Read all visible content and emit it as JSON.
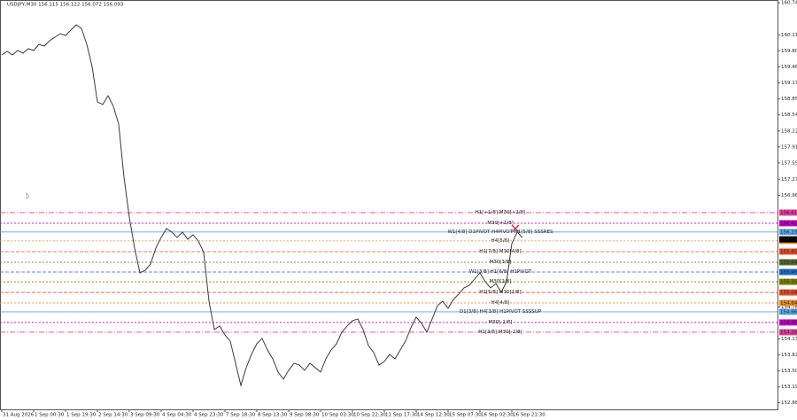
{
  "chart_data": {
    "type": "line",
    "title": "USDJPY,M30  156.115 156.122 156.072 156.093",
    "categories": [
      "31 Aug 2026",
      null,
      null,
      null,
      null,
      null,
      "1 Sep 00:30",
      null,
      null,
      null,
      null,
      null,
      "1 Sep 19:30",
      null,
      null,
      null,
      null,
      null,
      "2 Sep 14:30",
      null,
      null,
      null,
      null,
      null,
      "3 Sep 09:30",
      null,
      null,
      null,
      null,
      null,
      "4 Sep 04:30",
      null,
      null,
      null,
      null,
      null,
      "4 Sep 23:30",
      null,
      null,
      null,
      null,
      null,
      "7 Sep 18:30",
      null,
      null,
      null,
      null,
      null,
      "8 Sep 13:30",
      null,
      null,
      null,
      null,
      null,
      "9 Sep 08:30",
      null,
      null,
      null,
      null,
      null,
      "10 Sep 03:30",
      null,
      null,
      null,
      null,
      null,
      "10 Sep 22:30",
      null,
      null,
      null,
      null,
      null,
      "11 Sep 17:30",
      null,
      null,
      null,
      null,
      null,
      "14 Sep 12:30",
      null,
      null,
      null,
      null,
      null,
      "15 Sep 07:30",
      null,
      null,
      null,
      null,
      null,
      "16 Sep 02:30",
      null,
      null,
      null,
      null,
      null,
      "16 Sep 21:30",
      null,
      null
    ],
    "values": [
      159.72,
      159.79,
      159.72,
      159.807,
      159.755,
      159.842,
      159.807,
      159.929,
      159.894,
      159.999,
      160.068,
      160.138,
      160.103,
      160.208,
      160.312,
      160.242,
      159.929,
      159.493,
      158.797,
      158.744,
      158.918,
      158.709,
      158.361,
      157.316,
      156.532,
      155.922,
      155.434,
      155.486,
      155.608,
      155.922,
      156.131,
      156.305,
      156.236,
      156.131,
      156.236,
      156.096,
      156.183,
      156.061,
      155.835,
      154.877,
      154.319,
      154.389,
      154.215,
      154.093,
      153.657,
      153.222,
      153.57,
      153.831,
      154.04,
      154.145,
      153.919,
      153.744,
      153.483,
      153.344,
      153.518,
      153.657,
      153.622,
      153.518,
      153.657,
      153.57,
      153.483,
      153.744,
      153.919,
      154.04,
      154.267,
      154.389,
      154.493,
      154.528,
      154.319,
      154.006,
      153.866,
      153.622,
      153.692,
      153.831,
      153.744,
      153.919,
      154.093,
      154.354,
      154.563,
      154.441,
      154.267,
      154.528,
      154.79,
      154.877,
      154.737,
      154.911,
      155.016,
      155.138,
      155.19,
      155.312,
      155.434,
      155.26,
      155.138,
      155.225,
      155.051,
      155.26,
      156.009,
      156.236,
      156.131
    ],
    "color": "#3a3a3a",
    "ylim": [
      152.75,
      160.8
    ],
    "yticks": [
      160.745,
      160.115,
      {
        "value": 159.8,
        "label": "159.800"
      },
      159.485,
      {
        "value": 159.17,
        "label": "159.170"
      },
      158.855,
      {
        "value": 158.54,
        "label": "158.540"
      },
      158.225,
      {
        "value": 157.91,
        "label": "157.910"
      },
      157.595,
      157.275,
      {
        "value": 156.96,
        "label": "156.960"
      },
      154.765,
      154.135,
      {
        "value": 153.82,
        "label": "153.820"
      },
      153.505,
      {
        "value": 153.19,
        "label": "153.190"
      },
      {
        "value": 152.88,
        "label": "152.880"
      }
    ],
    "grid": false,
    "levels": [
      {
        "label": "H1[+1/8] M30[+2/8]",
        "value": 156.619,
        "color": "#e0409a",
        "dash": "6 2 1 2"
      },
      {
        "label": "M30[+1/8]",
        "value": 156.41,
        "color": "#c000c0",
        "dash": "2 2"
      },
      {
        "label": "W1[4/8] D1PIVOT H4PIVOT H1[5/8] SSSRES",
        "value": 156.238,
        "color": "#5aa7e6",
        "dash": "none"
      },
      {
        "label": "H4[5/8]",
        "value": 156.063,
        "color": "#f08a24",
        "dash": "2 2"
      },
      {
        "label": "H1[7/8] M30[4/8]",
        "value": 155.852,
        "color": "#e8502a",
        "dash": "4 2"
      },
      {
        "label": "M30[3/8]",
        "value": 155.643,
        "color": "#556b2f",
        "dash": "2 2"
      },
      {
        "label": "W1[3/8] H1[6/8] H1PIVOT",
        "value": 155.451,
        "color": "#1e6fd0",
        "dash": "4 2"
      },
      {
        "label": "M30[2/8]",
        "value": 155.258,
        "color": "#808000",
        "dash": "2 2"
      },
      {
        "label": "H1[5/8] M30[1/8]",
        "value": 155.049,
        "color": "#e8502a",
        "dash": "4 2"
      },
      {
        "label": "H4[4/8]",
        "value": 154.842,
        "color": "#f08a24",
        "dash": "2 2"
      },
      {
        "label": "D1[3/8] H4[3/8] H1PIVOT SSSSUP",
        "value": 154.668,
        "color": "#5aa7e6",
        "dash": "none"
      },
      {
        "label": "M30[-1/8]",
        "value": 154.459,
        "color": "#c000c0",
        "dash": "2 2"
      },
      {
        "label": "H1[3/8] M30[-2/8]",
        "value": 154.267,
        "color": "#e0409a",
        "dash": "6 2 1 2"
      }
    ],
    "last_price": 156.093
  }
}
